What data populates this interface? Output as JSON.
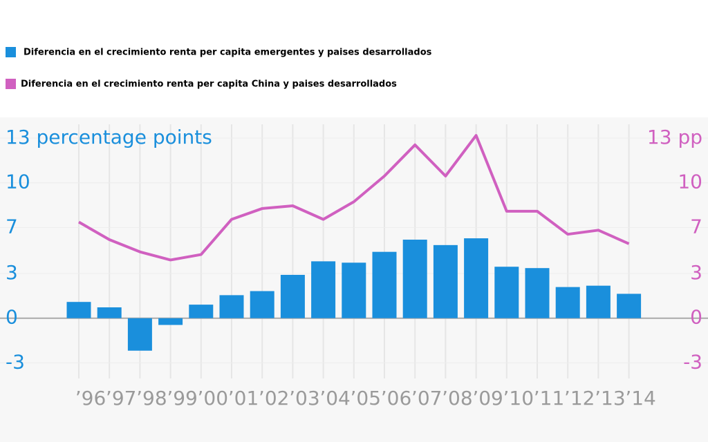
{
  "chart_data": {
    "type": "bar_line",
    "categories": [
      "’96",
      "’97",
      "’98",
      "’99",
      "’00",
      "’01",
      "’02",
      "’03",
      "’04",
      "’05",
      "’06",
      "’07",
      "’08",
      "’09",
      "’10",
      "’11",
      "’12",
      "’13",
      "’14"
    ],
    "series": [
      {
        "name": "Diferencia en el crecimiento renta per capita emergentes y paises desarrollados",
        "type": "bar",
        "color": "#1a8fdc",
        "values": [
          1.2,
          0.8,
          -2.4,
          -0.5,
          1.0,
          1.7,
          2.0,
          3.2,
          4.2,
          4.1,
          4.9,
          5.8,
          5.4,
          5.9,
          3.8,
          3.7,
          2.3,
          2.4,
          1.8
        ]
      },
      {
        "name": "Diferencia en el crecimiento renta per capita China y paises desarrollados",
        "type": "line",
        "color": "#d060c0",
        "axis": "y2",
        "values": [
          7.1,
          5.8,
          4.9,
          4.3,
          4.7,
          7.3,
          8.1,
          8.3,
          7.3,
          8.6,
          10.5,
          12.8,
          10.5,
          13.5,
          7.9,
          7.9,
          6.2,
          6.5,
          5.5
        ]
      }
    ],
    "ylim": [
      -4.3,
      13.3
    ],
    "yticks": [
      {
        "value": 13.3,
        "label": "13 percentage points"
      },
      10,
      {
        "value": 6.7,
        "label": "7"
      },
      {
        "value": 3.3,
        "label": "3"
      },
      0,
      {
        "value": -3.3,
        "label": "-3"
      }
    ],
    "y2lim": [
      -4.3,
      13.3
    ],
    "y2ticks": [
      {
        "value": 13.3,
        "label": "13 pp"
      },
      10,
      {
        "value": 6.7,
        "label": "7"
      },
      {
        "value": 3.3,
        "label": "3"
      },
      0,
      {
        "value": -3.3,
        "label": "-3"
      }
    ],
    "grid": true
  }
}
